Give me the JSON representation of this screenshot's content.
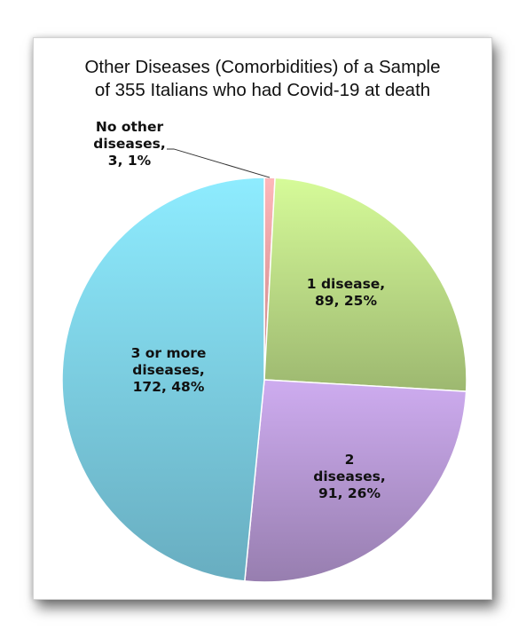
{
  "chart_data": {
    "type": "pie",
    "title_lines": [
      "Other Diseases (Comorbidities) of a Sample",
      "of 355 Italians who had Covid-19 at death"
    ],
    "slices": [
      {
        "category": "No other diseases",
        "value": 3,
        "percent": "1%",
        "label_lines": [
          "No other",
          "diseases,",
          "3, 1%"
        ],
        "color": "#f4a3a6"
      },
      {
        "category": "1 disease",
        "value": 89,
        "percent": "25%",
        "label_lines": [
          "1 disease,",
          "89, 25%"
        ],
        "color": "#bfe089"
      },
      {
        "category": "2 diseases",
        "value": 91,
        "percent": "26%",
        "label_lines": [
          "2",
          "diseases,",
          "91, 26%"
        ],
        "color": "#b89ad6"
      },
      {
        "category": "3 or more diseases",
        "value": 172,
        "percent": "48%",
        "label_lines": [
          "3 or more",
          "diseases,",
          "172, 48%"
        ],
        "color": "#7fd3ea"
      }
    ]
  }
}
